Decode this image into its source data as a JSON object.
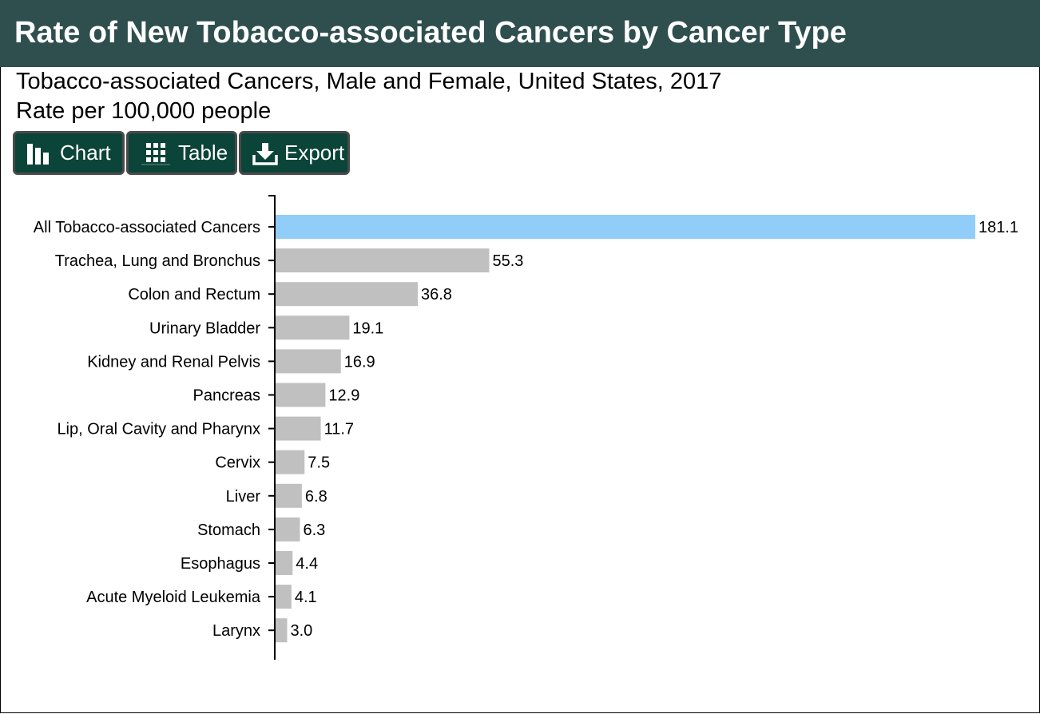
{
  "header": {
    "title": "Rate of New Tobacco-associated Cancers by Cancer Type"
  },
  "subtitle": {
    "line1": "Tobacco-associated Cancers, Male and Female, United States, 2017",
    "line2": "Rate per 100,000 people"
  },
  "toolbar": {
    "chart_label": "Chart",
    "table_label": "Table",
    "export_label": "Export"
  },
  "colors": {
    "header_bg": "#2f4f4f",
    "button_bg": "#0b4438",
    "highlight_bar": "#90cdf8",
    "bar": "#c0c0c0"
  },
  "chart_data": {
    "type": "bar",
    "orientation": "horizontal",
    "categories": [
      "All Tobacco-associated Cancers",
      "Trachea, Lung and Bronchus",
      "Colon and Rectum",
      "Urinary Bladder",
      "Kidney and Renal Pelvis",
      "Pancreas",
      "Lip, Oral Cavity and Pharynx",
      "Cervix",
      "Liver",
      "Stomach",
      "Esophagus",
      "Acute Myeloid Leukemia",
      "Larynx"
    ],
    "values": [
      181.1,
      55.3,
      36.8,
      19.1,
      16.9,
      12.9,
      11.7,
      7.5,
      6.8,
      6.3,
      4.4,
      4.1,
      3.0
    ],
    "value_labels": [
      "181.1",
      "55.3",
      "36.8",
      "19.1",
      "16.9",
      "12.9",
      "11.7",
      "7.5",
      "6.8",
      "6.3",
      "4.4",
      "4.1",
      "3.0"
    ],
    "highlight_index": 0,
    "xlim": [
      0,
      181.1
    ],
    "grid": false,
    "legend": "none"
  }
}
